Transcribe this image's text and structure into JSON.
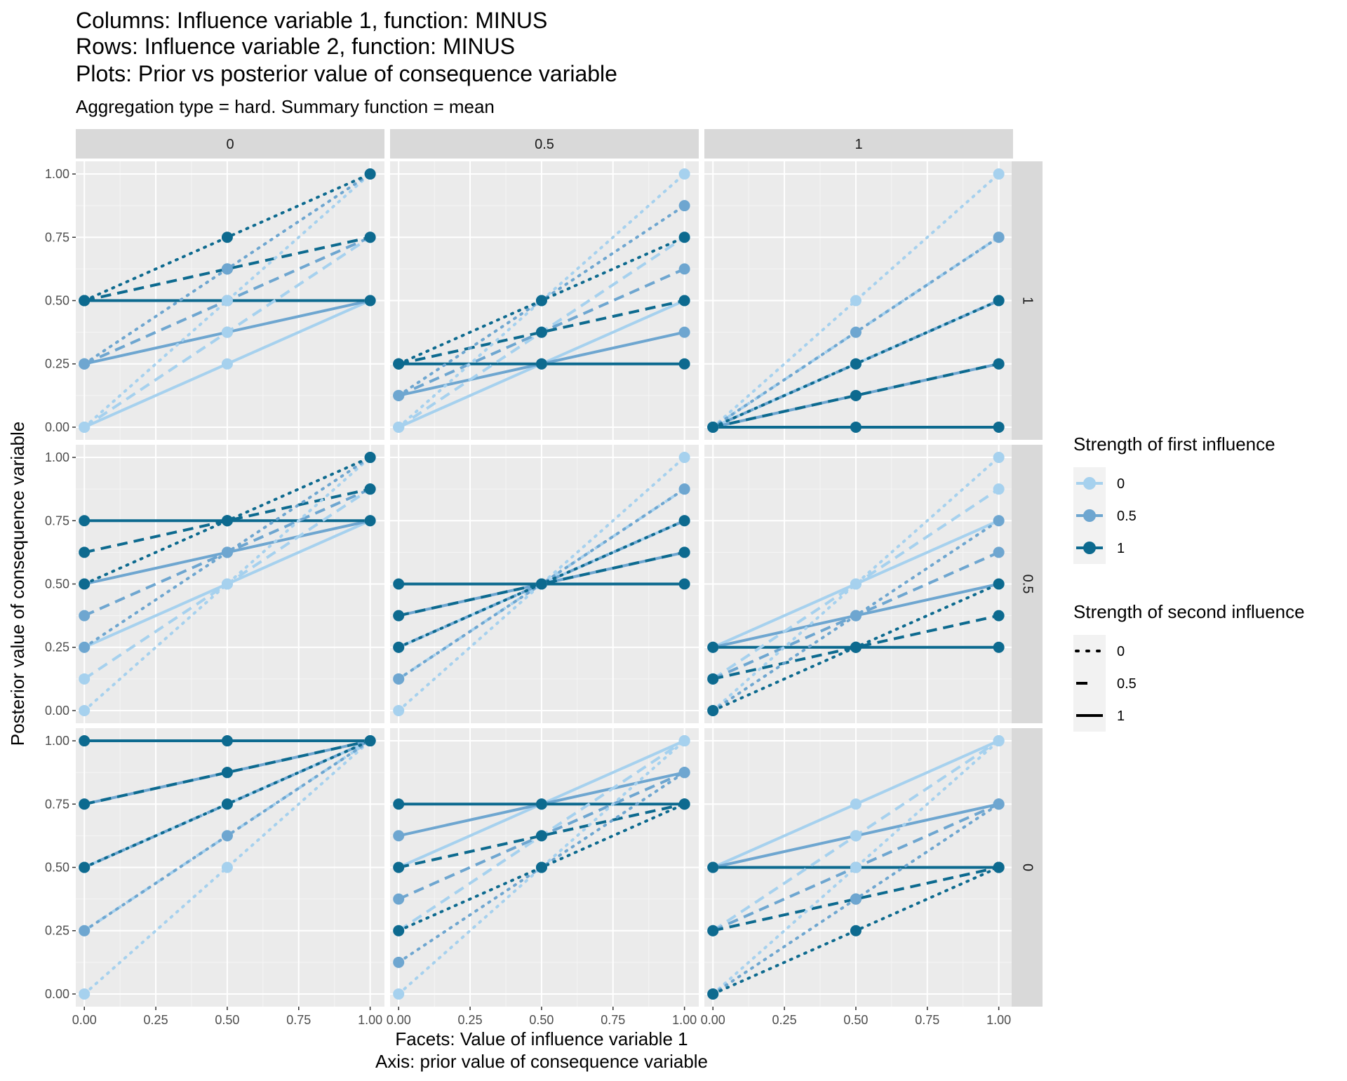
{
  "chart_data": {
    "type": "line",
    "title_lines": [
      "Columns: Influence variable 1, function: MINUS",
      "Rows: Influence variable 2, function: MINUS",
      "Plots: Prior vs posterior value of consequence variable"
    ],
    "subtitle": "Aggregation type = hard. Summary function = mean",
    "xlabel_lines": [
      "Facets: Value of influence variable 1",
      "Axis: prior value of consequence variable"
    ],
    "ylabel": "Posterior value of consequence variable",
    "column_strips": [
      "0",
      "0.5",
      "1"
    ],
    "row_strips": [
      "1",
      "0.5",
      "0"
    ],
    "x_ticks": [
      "0.00",
      "0.25",
      "0.50",
      "0.75",
      "1.00"
    ],
    "y_ticks": [
      "0.00",
      "0.25",
      "0.50",
      "0.75",
      "1.00"
    ],
    "xlim": [
      -0.03,
      1.05
    ],
    "ylim": [
      -0.05,
      1.05
    ],
    "x": [
      0,
      0.5,
      1
    ],
    "grid": true,
    "legend_position": "right",
    "legend_color": {
      "title": "Strength of first influence",
      "entries": [
        "0",
        "0.5",
        "1"
      ],
      "colors": [
        "#a6d1ee",
        "#6ea6d0",
        "#0d6a8f"
      ]
    },
    "legend_linetype": {
      "title": "Strength of second influence",
      "entries": [
        "0",
        "0.5",
        "1"
      ],
      "styles": [
        "dotted",
        "dashed",
        "solid"
      ]
    },
    "panels": [
      {
        "row": "1",
        "col": "0",
        "series": [
          {
            "color": "0",
            "linetype": "0",
            "values": [
              0,
              0.5,
              1
            ]
          },
          {
            "color": "0",
            "linetype": "0.5",
            "values": [
              0,
              0.375,
              0.75
            ]
          },
          {
            "color": "0",
            "linetype": "1",
            "values": [
              0,
              0.25,
              0.5
            ]
          },
          {
            "color": "0.5",
            "linetype": "0",
            "values": [
              0.25,
              0.625,
              1
            ]
          },
          {
            "color": "0.5",
            "linetype": "0.5",
            "values": [
              0.25,
              0.5,
              0.75
            ]
          },
          {
            "color": "0.5",
            "linetype": "1",
            "values": [
              0.25,
              0.375,
              0.5
            ]
          },
          {
            "color": "1",
            "linetype": "0",
            "values": [
              0.5,
              0.75,
              1
            ]
          },
          {
            "color": "1",
            "linetype": "0.5",
            "values": [
              0.5,
              0.625,
              0.75
            ]
          },
          {
            "color": "1",
            "linetype": "1",
            "values": [
              0.5,
              0.5,
              0.5
            ]
          }
        ]
      },
      {
        "row": "1",
        "col": "0.5",
        "series": [
          {
            "color": "0",
            "linetype": "0",
            "values": [
              0,
              0.5,
              1
            ]
          },
          {
            "color": "0",
            "linetype": "0.5",
            "values": [
              0,
              0.375,
              0.75
            ]
          },
          {
            "color": "0",
            "linetype": "1",
            "values": [
              0,
              0.25,
              0.5
            ]
          },
          {
            "color": "0.5",
            "linetype": "0",
            "values": [
              0.125,
              0.5,
              0.875
            ]
          },
          {
            "color": "0.5",
            "linetype": "0.5",
            "values": [
              0.125,
              0.375,
              0.625
            ]
          },
          {
            "color": "0.5",
            "linetype": "1",
            "values": [
              0.125,
              0.25,
              0.375
            ]
          },
          {
            "color": "1",
            "linetype": "0",
            "values": [
              0.25,
              0.5,
              0.75
            ]
          },
          {
            "color": "1",
            "linetype": "0.5",
            "values": [
              0.25,
              0.375,
              0.5
            ]
          },
          {
            "color": "1",
            "linetype": "1",
            "values": [
              0.25,
              0.25,
              0.25
            ]
          }
        ]
      },
      {
        "row": "1",
        "col": "1",
        "series": [
          {
            "color": "0",
            "linetype": "0",
            "values": [
              0,
              0.5,
              1
            ]
          },
          {
            "color": "0",
            "linetype": "0.5",
            "values": [
              0,
              0.375,
              0.75
            ]
          },
          {
            "color": "0",
            "linetype": "1",
            "values": [
              0,
              0.25,
              0.5
            ]
          },
          {
            "color": "0.5",
            "linetype": "0",
            "values": [
              0,
              0.375,
              0.75
            ]
          },
          {
            "color": "0.5",
            "linetype": "0.5",
            "values": [
              0,
              0.25,
              0.5
            ]
          },
          {
            "color": "0.5",
            "linetype": "1",
            "values": [
              0,
              0.125,
              0.25
            ]
          },
          {
            "color": "1",
            "linetype": "0",
            "values": [
              0,
              0.25,
              0.5
            ]
          },
          {
            "color": "1",
            "linetype": "0.5",
            "values": [
              0,
              0.125,
              0.25
            ]
          },
          {
            "color": "1",
            "linetype": "1",
            "values": [
              0,
              0,
              0
            ]
          }
        ]
      },
      {
        "row": "0.5",
        "col": "0",
        "series": [
          {
            "color": "0",
            "linetype": "0",
            "values": [
              0,
              0.5,
              1
            ]
          },
          {
            "color": "0",
            "linetype": "0.5",
            "values": [
              0.125,
              0.5,
              0.875
            ]
          },
          {
            "color": "0",
            "linetype": "1",
            "values": [
              0.25,
              0.5,
              0.75
            ]
          },
          {
            "color": "0.5",
            "linetype": "0",
            "values": [
              0.25,
              0.625,
              1
            ]
          },
          {
            "color": "0.5",
            "linetype": "0.5",
            "values": [
              0.375,
              0.625,
              0.875
            ]
          },
          {
            "color": "0.5",
            "linetype": "1",
            "values": [
              0.5,
              0.625,
              0.75
            ]
          },
          {
            "color": "1",
            "linetype": "0",
            "values": [
              0.5,
              0.75,
              1
            ]
          },
          {
            "color": "1",
            "linetype": "0.5",
            "values": [
              0.625,
              0.75,
              0.875
            ]
          },
          {
            "color": "1",
            "linetype": "1",
            "values": [
              0.75,
              0.75,
              0.75
            ]
          }
        ]
      },
      {
        "row": "0.5",
        "col": "0.5",
        "series": [
          {
            "color": "0",
            "linetype": "0",
            "values": [
              0,
              0.5,
              1
            ]
          },
          {
            "color": "0",
            "linetype": "0.5",
            "values": [
              0.125,
              0.5,
              0.875
            ]
          },
          {
            "color": "0",
            "linetype": "1",
            "values": [
              0.25,
              0.5,
              0.75
            ]
          },
          {
            "color": "0.5",
            "linetype": "0",
            "values": [
              0.125,
              0.5,
              0.875
            ]
          },
          {
            "color": "0.5",
            "linetype": "0.5",
            "values": [
              0.25,
              0.5,
              0.75
            ]
          },
          {
            "color": "0.5",
            "linetype": "1",
            "values": [
              0.375,
              0.5,
              0.625
            ]
          },
          {
            "color": "1",
            "linetype": "0",
            "values": [
              0.25,
              0.5,
              0.75
            ]
          },
          {
            "color": "1",
            "linetype": "0.5",
            "values": [
              0.375,
              0.5,
              0.625
            ]
          },
          {
            "color": "1",
            "linetype": "1",
            "values": [
              0.5,
              0.5,
              0.5
            ]
          }
        ]
      },
      {
        "row": "0.5",
        "col": "1",
        "series": [
          {
            "color": "0",
            "linetype": "0",
            "values": [
              0,
              0.5,
              1
            ]
          },
          {
            "color": "0",
            "linetype": "0.5",
            "values": [
              0.125,
              0.5,
              0.875
            ]
          },
          {
            "color": "0",
            "linetype": "1",
            "values": [
              0.25,
              0.5,
              0.75
            ]
          },
          {
            "color": "0.5",
            "linetype": "0",
            "values": [
              0,
              0.375,
              0.75
            ]
          },
          {
            "color": "0.5",
            "linetype": "0.5",
            "values": [
              0.125,
              0.375,
              0.625
            ]
          },
          {
            "color": "0.5",
            "linetype": "1",
            "values": [
              0.25,
              0.375,
              0.5
            ]
          },
          {
            "color": "1",
            "linetype": "0",
            "values": [
              0,
              0.25,
              0.5
            ]
          },
          {
            "color": "1",
            "linetype": "0.5",
            "values": [
              0.125,
              0.25,
              0.375
            ]
          },
          {
            "color": "1",
            "linetype": "1",
            "values": [
              0.25,
              0.25,
              0.25
            ]
          }
        ]
      },
      {
        "row": "0",
        "col": "0",
        "series": [
          {
            "color": "0",
            "linetype": "0",
            "values": [
              0,
              0.5,
              1
            ]
          },
          {
            "color": "0",
            "linetype": "0.5",
            "values": [
              0.25,
              0.625,
              1
            ]
          },
          {
            "color": "0",
            "linetype": "1",
            "values": [
              0.5,
              0.75,
              1
            ]
          },
          {
            "color": "0.5",
            "linetype": "0",
            "values": [
              0.25,
              0.625,
              1
            ]
          },
          {
            "color": "0.5",
            "linetype": "0.5",
            "values": [
              0.5,
              0.75,
              1
            ]
          },
          {
            "color": "0.5",
            "linetype": "1",
            "values": [
              0.75,
              0.875,
              1
            ]
          },
          {
            "color": "1",
            "linetype": "0",
            "values": [
              0.5,
              0.75,
              1
            ]
          },
          {
            "color": "1",
            "linetype": "0.5",
            "values": [
              0.75,
              0.875,
              1
            ]
          },
          {
            "color": "1",
            "linetype": "1",
            "values": [
              1,
              1,
              1
            ]
          }
        ]
      },
      {
        "row": "0",
        "col": "0.5",
        "series": [
          {
            "color": "0",
            "linetype": "0",
            "values": [
              0,
              0.5,
              1
            ]
          },
          {
            "color": "0",
            "linetype": "0.5",
            "values": [
              0.25,
              0.625,
              1
            ]
          },
          {
            "color": "0",
            "linetype": "1",
            "values": [
              0.5,
              0.75,
              1
            ]
          },
          {
            "color": "0.5",
            "linetype": "0",
            "values": [
              0.125,
              0.5,
              0.875
            ]
          },
          {
            "color": "0.5",
            "linetype": "0.5",
            "values": [
              0.375,
              0.625,
              0.875
            ]
          },
          {
            "color": "0.5",
            "linetype": "1",
            "values": [
              0.625,
              0.75,
              0.875
            ]
          },
          {
            "color": "1",
            "linetype": "0",
            "values": [
              0.25,
              0.5,
              0.75
            ]
          },
          {
            "color": "1",
            "linetype": "0.5",
            "values": [
              0.5,
              0.625,
              0.75
            ]
          },
          {
            "color": "1",
            "linetype": "1",
            "values": [
              0.75,
              0.75,
              0.75
            ]
          }
        ]
      },
      {
        "row": "0",
        "col": "1",
        "series": [
          {
            "color": "0",
            "linetype": "0",
            "values": [
              0,
              0.5,
              1
            ]
          },
          {
            "color": "0",
            "linetype": "0.5",
            "values": [
              0.25,
              0.625,
              1
            ]
          },
          {
            "color": "0",
            "linetype": "1",
            "values": [
              0.5,
              0.75,
              1
            ]
          },
          {
            "color": "0.5",
            "linetype": "0",
            "values": [
              0,
              0.375,
              0.75
            ]
          },
          {
            "color": "0.5",
            "linetype": "0.5",
            "values": [
              0.25,
              0.5,
              0.75
            ]
          },
          {
            "color": "0.5",
            "linetype": "1",
            "values": [
              0.5,
              0.625,
              0.75
            ]
          },
          {
            "color": "1",
            "linetype": "0",
            "values": [
              0,
              0.25,
              0.5
            ]
          },
          {
            "color": "1",
            "linetype": "0.5",
            "values": [
              0.25,
              0.375,
              0.5
            ]
          },
          {
            "color": "1",
            "linetype": "1",
            "values": [
              0.5,
              0.5,
              0.5
            ]
          }
        ]
      }
    ]
  }
}
